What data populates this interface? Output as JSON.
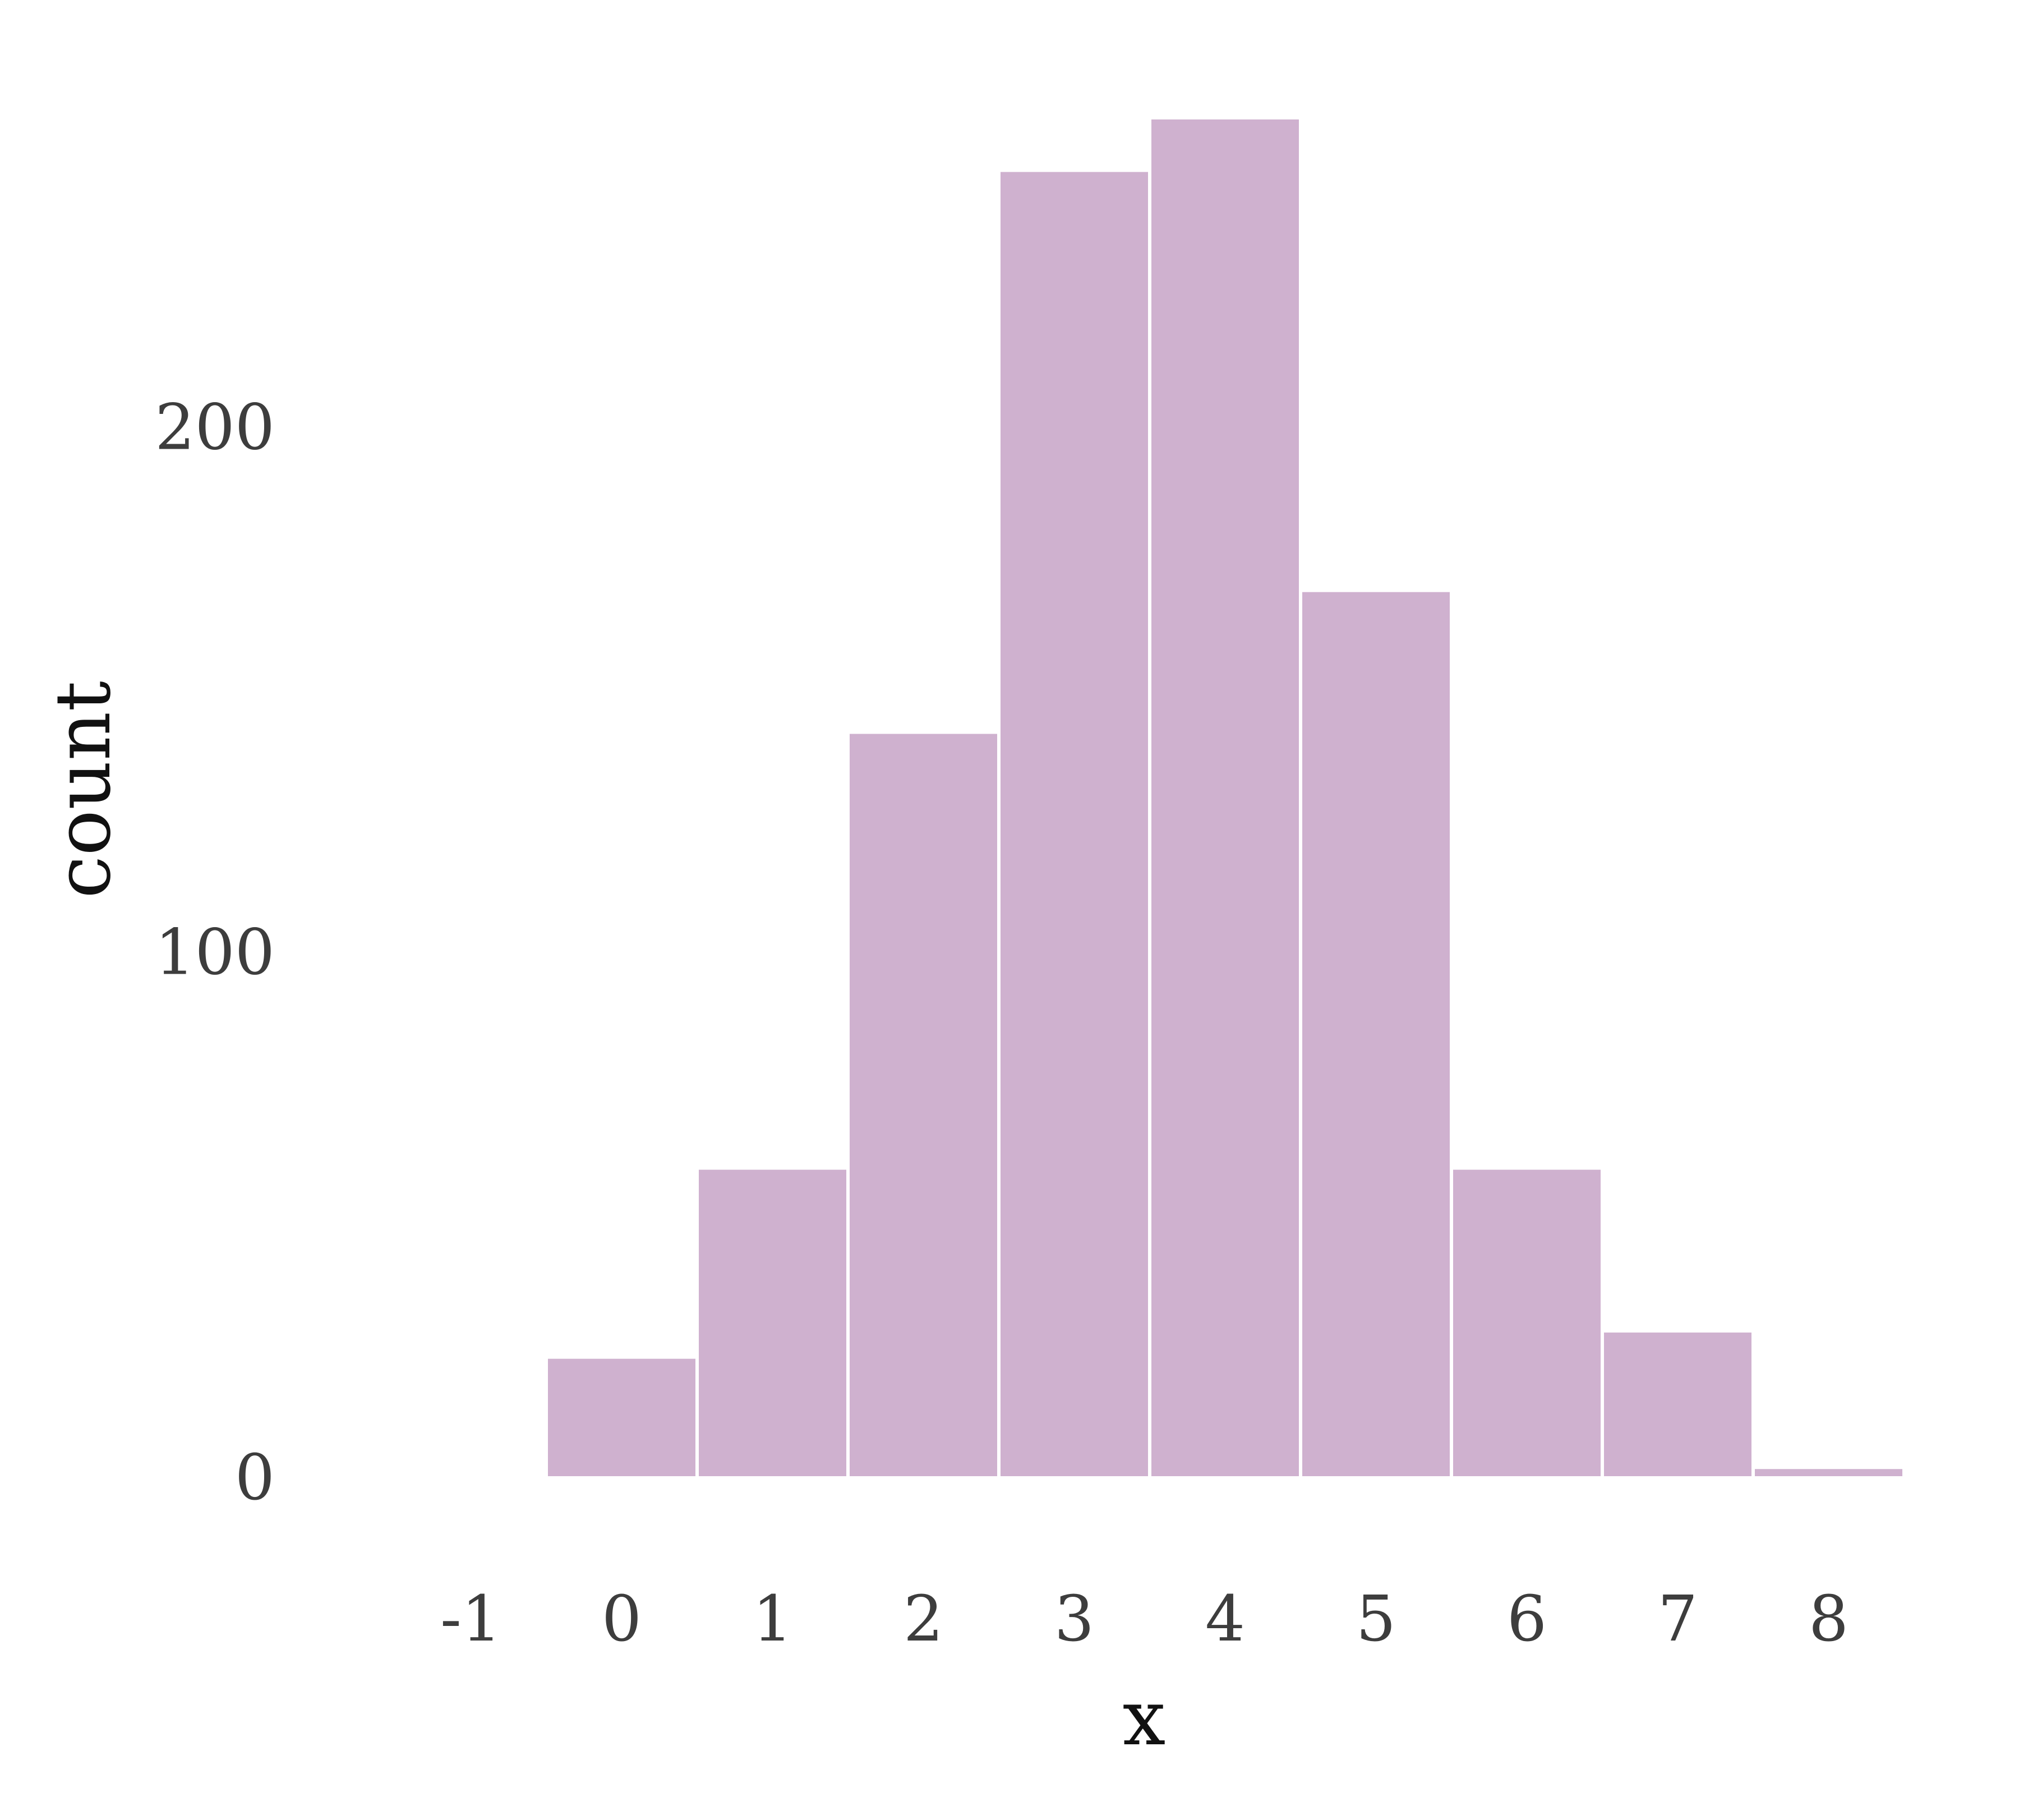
{
  "chart_data": {
    "type": "bar",
    "subtype": "histogram",
    "bin_centers": [
      -1,
      0,
      1,
      2,
      3,
      4,
      5,
      6,
      7,
      8
    ],
    "categories": [
      "-1",
      "0",
      "1",
      "2",
      "3",
      "4",
      "5",
      "6",
      "7",
      "8"
    ],
    "values": [
      0.1,
      23,
      59,
      142,
      249,
      259,
      169,
      59,
      28,
      2
    ],
    "xlabel": "x",
    "ylabel": "count",
    "xlim": [
      -1.5,
      8.5
    ],
    "ylim": [
      0,
      259
    ],
    "yticks": [
      0,
      100,
      200
    ],
    "ytick_labels": [
      "0",
      "100",
      "200"
    ],
    "grid": false,
    "legend": "none",
    "colors": {
      "bar_fill": "#cfb1cf",
      "bar_stroke": "#ffffff",
      "background": "#ffffff"
    }
  }
}
